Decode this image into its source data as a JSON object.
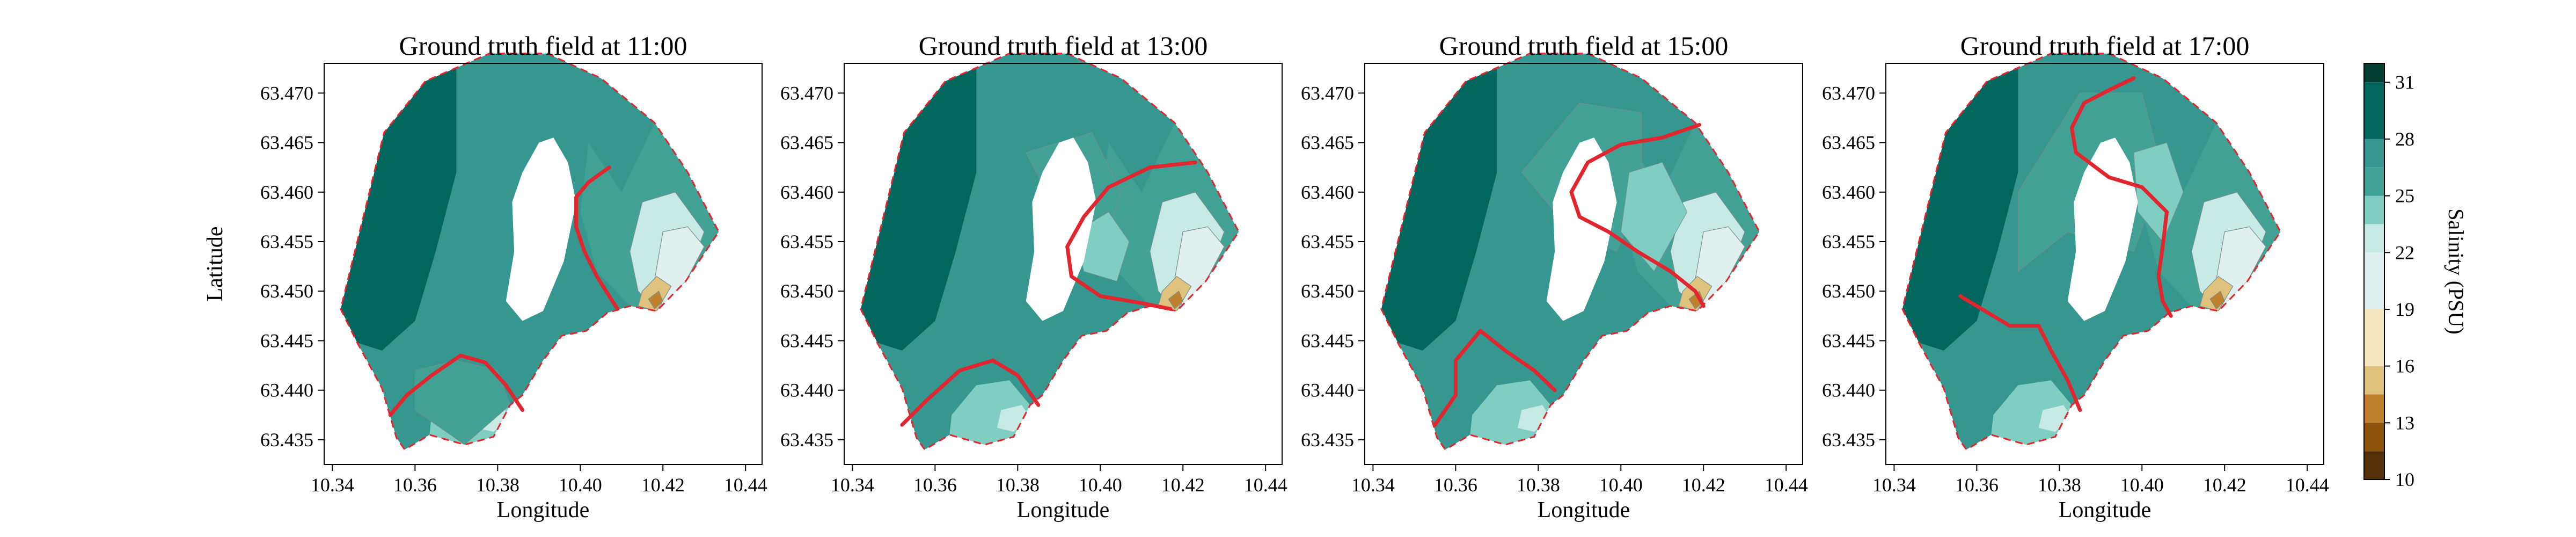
{
  "chart_data": [
    {
      "type": "contour",
      "title": "Ground truth field at 11:00",
      "xlabel": "Longitude",
      "ylabel": "Latitude",
      "xlim": [
        10.338,
        10.444
      ],
      "ylim": [
        63.4325,
        63.473
      ],
      "xticks": [
        "10.34",
        "10.36",
        "10.38",
        "10.40",
        "10.42",
        "10.44"
      ],
      "yticks": [
        "63.435",
        "63.440",
        "63.445",
        "63.450",
        "63.455",
        "63.460",
        "63.465",
        "63.470"
      ],
      "front_line": [
        [
          10.407,
          63.4625
        ],
        [
          10.402,
          63.461
        ],
        [
          10.399,
          63.4595
        ],
        [
          10.399,
          63.4565
        ],
        [
          10.401,
          63.454
        ],
        [
          10.404,
          63.4515
        ],
        [
          10.407,
          63.4495
        ],
        [
          10.409,
          63.4482
        ]
      ],
      "front_line_2": [
        [
          10.354,
          63.4375
        ],
        [
          10.358,
          63.4395
        ],
        [
          10.364,
          63.4415
        ],
        [
          10.371,
          63.4435
        ],
        [
          10.377,
          63.4428
        ],
        [
          10.382,
          63.4405
        ],
        [
          10.386,
          63.438
        ]
      ]
    },
    {
      "type": "contour",
      "title": "Ground truth field at 13:00",
      "xlabel": "Longitude",
      "ylabel": "",
      "xlim": [
        10.338,
        10.444
      ],
      "ylim": [
        63.4325,
        63.473
      ],
      "xticks": [
        "10.34",
        "10.36",
        "10.38",
        "10.40",
        "10.42",
        "10.44"
      ],
      "yticks": [
        "63.435",
        "63.440",
        "63.445",
        "63.450",
        "63.455",
        "63.460",
        "63.465",
        "63.470"
      ],
      "front_line": [
        [
          10.423,
          63.463
        ],
        [
          10.412,
          63.4625
        ],
        [
          10.402,
          63.4605
        ],
        [
          10.396,
          63.4575
        ],
        [
          10.392,
          63.4545
        ],
        [
          10.393,
          63.4515
        ],
        [
          10.4,
          63.4495
        ],
        [
          10.41,
          63.4488
        ],
        [
          10.417,
          63.4482
        ]
      ],
      "front_line_2": [
        [
          10.352,
          63.4365
        ],
        [
          10.358,
          63.439
        ],
        [
          10.366,
          63.442
        ],
        [
          10.374,
          63.443
        ],
        [
          10.38,
          63.4415
        ],
        [
          10.385,
          63.4385
        ]
      ]
    },
    {
      "type": "contour",
      "title": "Ground truth field at 15:00",
      "xlabel": "Longitude",
      "ylabel": "",
      "xlim": [
        10.338,
        10.444
      ],
      "ylim": [
        63.4325,
        63.473
      ],
      "xticks": [
        "10.34",
        "10.36",
        "10.38",
        "10.40",
        "10.42",
        "10.44"
      ],
      "yticks": [
        "63.435",
        "63.440",
        "63.445",
        "63.450",
        "63.455",
        "63.460",
        "63.465",
        "63.470"
      ],
      "front_line": [
        [
          10.419,
          63.4668
        ],
        [
          10.41,
          63.4655
        ],
        [
          10.4,
          63.4648
        ],
        [
          10.392,
          63.463
        ],
        [
          10.388,
          63.46
        ],
        [
          10.39,
          63.4575
        ],
        [
          10.397,
          63.456
        ],
        [
          10.404,
          63.454
        ],
        [
          10.412,
          63.452
        ],
        [
          10.418,
          63.45
        ],
        [
          10.42,
          63.4485
        ]
      ],
      "front_line_2": [
        [
          10.355,
          63.4365
        ],
        [
          10.36,
          63.4395
        ],
        [
          10.36,
          63.443
        ],
        [
          10.366,
          63.446
        ],
        [
          10.372,
          63.444
        ],
        [
          10.379,
          63.442
        ],
        [
          10.384,
          63.44
        ]
      ]
    },
    {
      "type": "contour",
      "title": "Ground truth field at 17:00",
      "xlabel": "Longitude",
      "ylabel": "",
      "xlim": [
        10.338,
        10.444
      ],
      "ylim": [
        63.4325,
        63.473
      ],
      "xticks": [
        "10.34",
        "10.36",
        "10.38",
        "10.40",
        "10.42",
        "10.44"
      ],
      "yticks": [
        "63.435",
        "63.440",
        "63.445",
        "63.450",
        "63.455",
        "63.460",
        "63.465",
        "63.470"
      ],
      "front_line": [
        [
          10.398,
          63.4715
        ],
        [
          10.393,
          63.4705
        ],
        [
          10.386,
          63.469
        ],
        [
          10.383,
          63.4665
        ],
        [
          10.384,
          63.464
        ],
        [
          10.392,
          63.4615
        ],
        [
          10.4,
          63.4605
        ],
        [
          10.406,
          63.458
        ],
        [
          10.405,
          63.4545
        ],
        [
          10.404,
          63.4515
        ],
        [
          10.405,
          63.449
        ],
        [
          10.407,
          63.4475
        ]
      ],
      "front_line_2": [
        [
          10.356,
          63.4495
        ],
        [
          10.362,
          63.448
        ],
        [
          10.368,
          63.4465
        ],
        [
          10.375,
          63.4465
        ],
        [
          10.378,
          63.444
        ],
        [
          10.382,
          63.441
        ],
        [
          10.385,
          63.438
        ]
      ]
    }
  ],
  "colorbar": {
    "label": "Salinity (PSU)",
    "ticks": [
      "10",
      "13",
      "16",
      "19",
      "22",
      "25",
      "28",
      "31"
    ],
    "colors": [
      "#54300a",
      "#8c510a",
      "#bf812d",
      "#dfc27d",
      "#f6e8c3",
      "#e0f0ee",
      "#c7eae5",
      "#80cdc1",
      "#42a195",
      "#35978f",
      "#01665e",
      "#003c30"
    ]
  },
  "style": {
    "front_color": "#e0262e",
    "boundary_color": "#e0262e"
  }
}
